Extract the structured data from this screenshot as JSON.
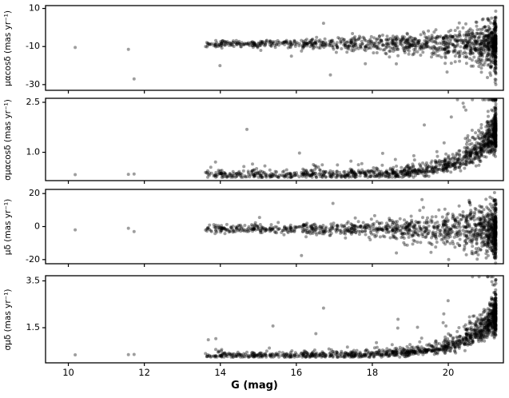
{
  "figure": {
    "xlabel": "G (mag)",
    "xlim": [
      9.4,
      21.45
    ],
    "xticks": [
      10,
      12,
      14,
      16,
      18,
      20
    ],
    "xtick_labels": [
      "10",
      "12",
      "14",
      "16",
      "18",
      "20"
    ],
    "background": "#ffffff",
    "point_color": "#000000",
    "point_opacity": 0.38,
    "point_radius": 2.0,
    "sample": {
      "n": 1300,
      "g_min": 13.6,
      "g_max": 21.25,
      "faint_bias": 2.6,
      "bright_g": [
        10.18,
        11.58,
        11.73
      ],
      "seed": 1234
    }
  },
  "chart_data": [
    {
      "type": "scatter",
      "ylabel": "μαcosδ (mas yr⁻¹)",
      "ylim": [
        -33,
        11.5
      ],
      "yticks": [
        10,
        -10,
        -30
      ],
      "ytick_labels": [
        "10",
        "-10",
        "-30"
      ],
      "series_summary": "Proper motion in RA: dense band centred near -8 mas/yr from G≈13.8 to 21.2, scatter widening from ±2 at G≈14 to ±12 at G≈21; outliers down to -30 and up to +7; three bright stars at G≈10.2 and 11.6-11.7 near -10 to -27.",
      "gen": {
        "kind": "pm",
        "mean": -8.5,
        "base_sigma": 1.0,
        "growth": 5.5,
        "outlier_frac": 0.025,
        "outlier_lo": -30,
        "outlier_hi": 7,
        "bright_vals": [
          -10.5,
          -11.5,
          -27
        ]
      }
    },
    {
      "type": "scatter",
      "ylabel": "σμαcosδ (mas yr⁻¹)",
      "ylim": [
        0.15,
        2.62
      ],
      "yticks": [
        2.5,
        1.0
      ],
      "ytick_labels": [
        "2.5",
        "1.0"
      ],
      "series_summary": "RA proper-motion uncertainty: flat floor near 0.33 mas/yr up to G≈19, then exponential rise reaching 1.5-2.5 mas/yr by G≈21.2; sparse elevated points at intermediate magnitudes.",
      "gen": {
        "kind": "err",
        "floor": 0.33,
        "amp": 2.0,
        "scale": 0.85,
        "ref": 21.6,
        "noise": 0.22,
        "floor_jitter": 0.015,
        "outlier_frac": 0.03,
        "outlier_mult": 3.0,
        "bright_vals": [
          0.33,
          0.34,
          0.35
        ]
      }
    },
    {
      "type": "scatter",
      "ylabel": "μδ (mas yr⁻¹)",
      "ylim": [
        -22.5,
        22.5
      ],
      "yticks": [
        20,
        0,
        -20
      ],
      "ytick_labels": [
        "20",
        "0",
        "-20"
      ],
      "series_summary": "Proper motion in Dec: dense band centred near -1 mas/yr, scatter widening toward faint G; outliers reaching ±20 mas/yr at G≳20; bright stars near -2.",
      "gen": {
        "kind": "pm",
        "mean": -1.5,
        "base_sigma": 1.3,
        "growth": 7.0,
        "outlier_frac": 0.03,
        "outlier_lo": -20,
        "outlier_hi": 18,
        "bright_vals": [
          -2,
          -1,
          -3
        ]
      }
    },
    {
      "type": "scatter",
      "ylabel": "σμδ (mas yr⁻¹)",
      "ylim": [
        0.0,
        3.72
      ],
      "yticks": [
        3.5,
        1.5
      ],
      "ytick_labels": [
        "3.5",
        "1.5"
      ],
      "series_summary": "Dec proper-motion uncertainty: flat floor near 0.33 mas/yr up to G≈19, exponential rise to 2-3.5 mas/yr by G≈21.2; sparse elevated points at intermediate magnitudes.",
      "gen": {
        "kind": "err",
        "floor": 0.33,
        "amp": 2.6,
        "scale": 0.85,
        "ref": 21.6,
        "noise": 0.22,
        "floor_jitter": 0.015,
        "outlier_frac": 0.03,
        "outlier_mult": 3.0,
        "bright_vals": [
          0.34,
          0.35,
          0.36
        ]
      }
    }
  ]
}
